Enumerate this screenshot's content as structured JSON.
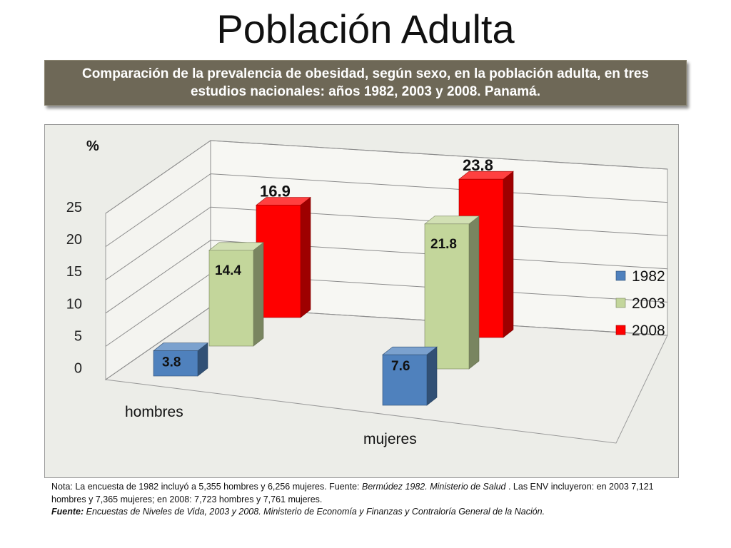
{
  "title": "Población Adulta",
  "subtitle": "Comparación  de la prevalencia de obesidad, según sexo, en la población adulta, en tres estudios nacionales: años 1982, 2003 y 2008. Panamá.",
  "note": {
    "line1_prefix": "Nota:  La encuesta de 1982 incluyó a 5,355 hombres y 6,256 mujeres. Fuente:  ",
    "line1_source": "Bermúdez 1982. Ministerio de Salud",
    "line1_suffix": " .  Las ENV incluyeron: en 2003 7,121 hombres y 7,365 mujeres; en 2008: 7,723 hombres y 7,761 mujeres.",
    "source_label": "Fuente:",
    "source_text": " Encuestas de Niveles de Vida, 2003 y 2008.  Ministerio de Economía y Finanzas y Contraloría General de la Nación."
  },
  "chart_data": {
    "type": "bar",
    "ylabel": "%",
    "categories": [
      "hombres",
      "mujeres"
    ],
    "series": [
      {
        "name": "1982",
        "values": [
          3.8,
          7.6
        ],
        "color": "#4f81bd"
      },
      {
        "name": "2003",
        "values": [
          14.4,
          21.8
        ],
        "color": "#c3d69b"
      },
      {
        "name": "2008",
        "values": [
          16.9,
          23.8
        ],
        "color": "#ff0000"
      }
    ],
    "ylim": [
      0,
      25
    ],
    "yticks": [
      "0",
      "5",
      "10",
      "15",
      "20",
      "25"
    ],
    "legend_position": "right",
    "grid": true,
    "data_labels": true
  }
}
